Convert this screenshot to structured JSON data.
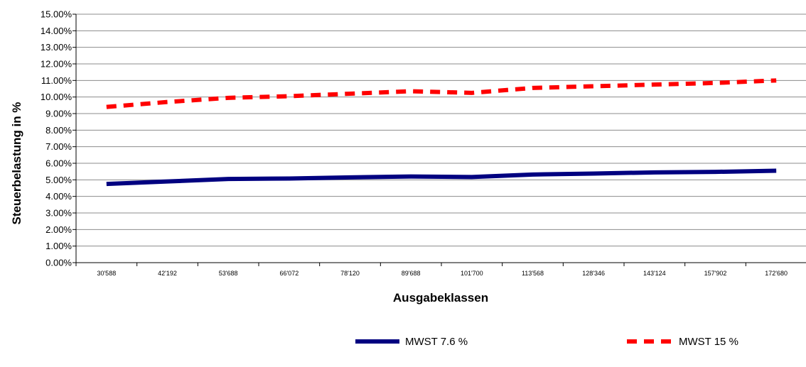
{
  "chart_data": {
    "type": "line",
    "title": "",
    "xlabel": "Ausgabeklassen",
    "ylabel": "Steuerbelastung in %",
    "categories": [
      "30'588",
      "42'192",
      "53'688",
      "66'072",
      "78'120",
      "89'688",
      "101'700",
      "113'568",
      "128'346",
      "143'124",
      "157'902",
      "172'680"
    ],
    "y_ticks": [
      "0.00%",
      "1.00%",
      "2.00%",
      "3.00%",
      "4.00%",
      "5.00%",
      "6.00%",
      "7.00%",
      "8.00%",
      "9.00%",
      "10.00%",
      "11.00%",
      "12.00%",
      "13.00%",
      "14.00%",
      "15.00%"
    ],
    "ylim": [
      0,
      15
    ],
    "grid": true,
    "legend_position": "bottom",
    "series": [
      {
        "name": "MWST 7.6 %",
        "color": "#000080",
        "style": "solid",
        "values": [
          4.75,
          4.9,
          5.05,
          5.08,
          5.15,
          5.2,
          5.17,
          5.32,
          5.38,
          5.45,
          5.48,
          5.55
        ]
      },
      {
        "name": "MWST 15 %",
        "color": "#FF0000",
        "style": "dashed",
        "values": [
          9.4,
          9.7,
          9.95,
          10.05,
          10.2,
          10.35,
          10.25,
          10.55,
          10.65,
          10.75,
          10.85,
          11.0
        ]
      }
    ]
  }
}
